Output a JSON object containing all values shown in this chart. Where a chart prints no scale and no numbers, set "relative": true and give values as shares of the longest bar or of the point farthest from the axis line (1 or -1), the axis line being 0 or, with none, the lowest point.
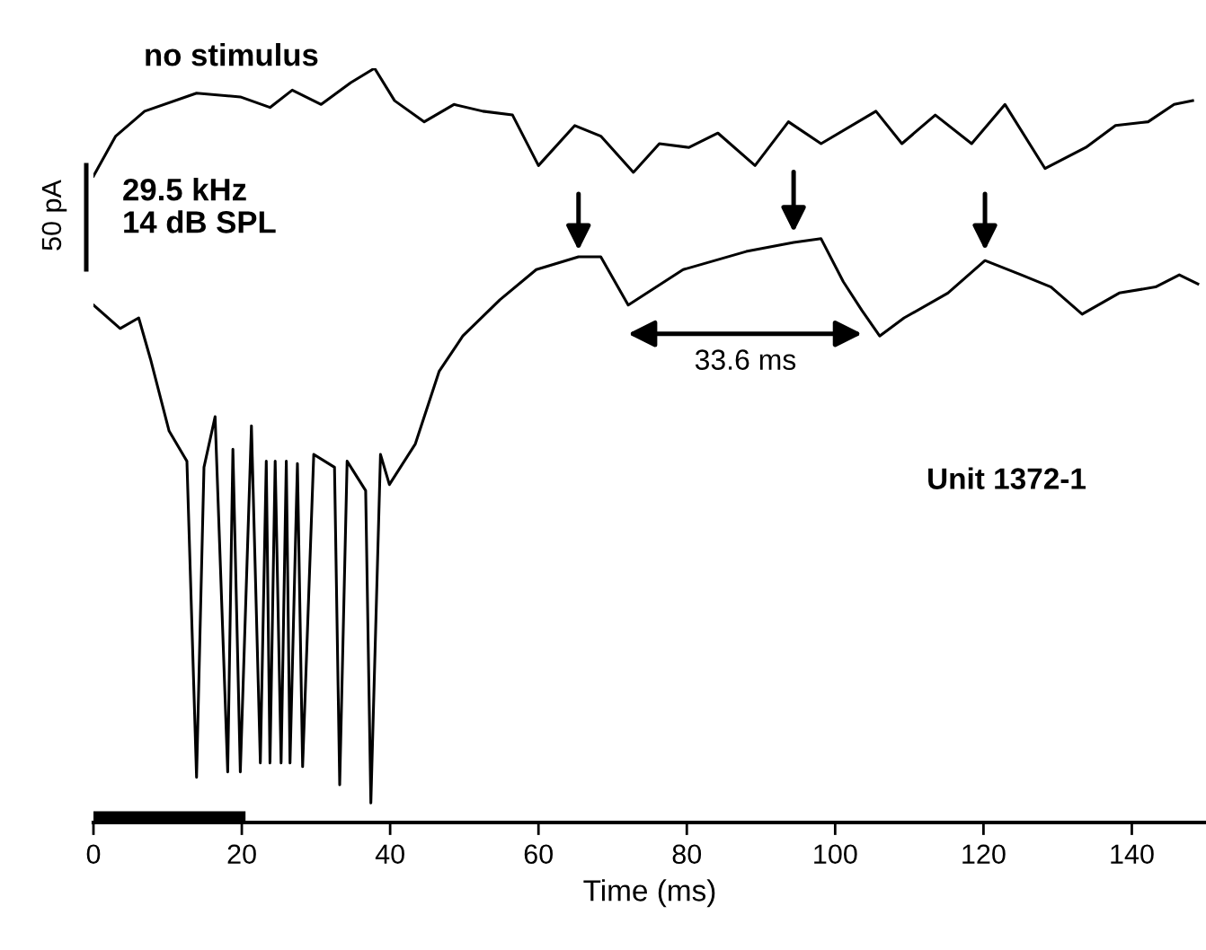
{
  "chart_data": {
    "type": "line",
    "relative": true,
    "xlabel": "Time (ms)",
    "x": [
      0,
      3.0,
      6.9,
      13.9,
      19.8,
      23.8,
      26.8,
      30.7,
      34.7,
      37.9,
      40.6,
      44.6,
      48.6,
      52.5,
      56.5,
      60.0,
      64.9,
      68.4,
      72.8,
      76.3,
      80.3,
      84.2,
      89.2,
      93.7,
      98.1,
      105.5,
      109.0,
      113.5,
      118.4,
      122.9,
      128.3,
      133.8,
      137.8,
      142.2,
      145.7,
      148.2
    ],
    "series": [
      {
        "name": "no stimulus",
        "color": "#000000",
        "values": [
          0.857,
          0.91,
          0.943,
          0.967,
          0.962,
          0.948,
          0.971,
          0.952,
          0.981,
          1.0,
          0.957,
          0.929,
          0.952,
          0.943,
          0.938,
          0.871,
          0.924,
          0.91,
          0.862,
          0.9,
          0.895,
          0.914,
          0.871,
          0.929,
          0.9,
          0.943,
          0.9,
          0.938,
          0.9,
          0.952,
          0.867,
          0.895,
          0.924,
          0.929,
          0.952,
          0.957
        ]
      },
      {
        "name": "29.5 kHz\n14 dB SPL",
        "color": "#000000",
        "x": [
          0,
          3.6,
          6.1,
          7.7,
          10.2,
          12.6,
          13.9,
          14.9,
          16.4,
          18.1,
          18.8,
          19.8,
          21.3,
          22.5,
          23.3,
          23.8,
          24.5,
          25.3,
          26.0,
          26.5,
          27.5,
          28.2,
          29.7,
          32.5,
          33.2,
          34.2,
          36.7,
          37.4,
          38.7,
          39.9,
          43.4,
          46.6,
          49.8,
          54.8,
          59.7,
          65.4,
          68.4,
          72.1,
          79.5,
          88.0,
          94.4,
          98.1,
          101.1,
          103.6,
          106.0,
          109.3,
          115.2,
          120.2,
          125.1,
          129.1,
          133.3,
          138.3,
          143.2,
          146.4,
          148.9
        ],
        "values": [
          0.686,
          0.655,
          0.669,
          0.614,
          0.519,
          0.479,
          0.06,
          0.471,
          0.538,
          0.067,
          0.495,
          0.067,
          0.526,
          0.079,
          0.479,
          0.079,
          0.479,
          0.079,
          0.479,
          0.079,
          0.476,
          0.074,
          0.488,
          0.471,
          0.05,
          0.479,
          0.44,
          0.026,
          0.488,
          0.448,
          0.502,
          0.598,
          0.645,
          0.693,
          0.733,
          0.75,
          0.75,
          0.686,
          0.733,
          0.757,
          0.769,
          0.774,
          0.717,
          0.679,
          0.645,
          0.669,
          0.702,
          0.745,
          0.726,
          0.71,
          0.674,
          0.702,
          0.71,
          0.726,
          0.714
        ]
      },
      {
        "type": "area",
        "color": "#000000",
        "x": [
          0,
          20.5
        ],
        "values": [
          0.015,
          0.015
        ]
      }
    ],
    "xlim": [
      0,
      150
    ],
    "xticks": [
      0,
      20,
      40,
      60,
      80,
      100,
      120,
      140
    ],
    "annotations": [
      "33.6 ms",
      "50 pA",
      "Unit 1372-1"
    ],
    "grid": false,
    "marker": "none",
    "line_style": "solid"
  }
}
